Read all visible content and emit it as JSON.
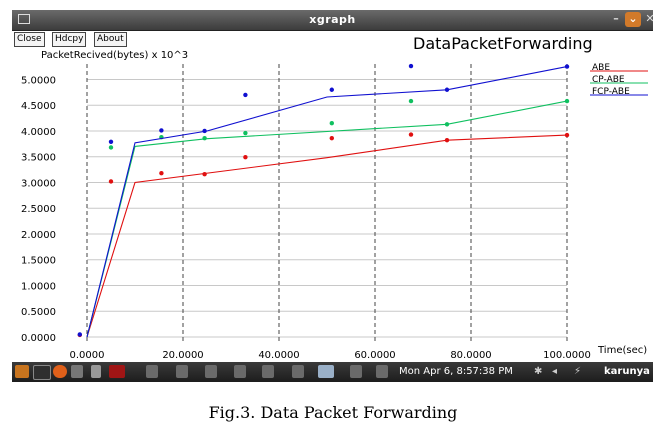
{
  "window": {
    "title": "xgraph"
  },
  "toolbar": {
    "close_label": "Close",
    "hdcpy_label": "Hdcpy",
    "about_label": "About"
  },
  "chart_data": {
    "type": "line",
    "title": "DataPacketForwarding",
    "ylabel": "PacketRecived(bytes) x 10^3",
    "xlabel": "Time(sec)",
    "xlim": [
      0,
      100
    ],
    "ylim": [
      0,
      5.3
    ],
    "x_ticks": [
      "0.0000",
      "20.0000",
      "40.0000",
      "60.0000",
      "80.0000",
      "100.0000"
    ],
    "y_ticks": [
      "0.0000",
      "0.5000",
      "1.0000",
      "1.5000",
      "2.0000",
      "2.5000",
      "3.0000",
      "3.5000",
      "4.0000",
      "4.5000",
      "5.0000"
    ],
    "grid": true,
    "legend_position": "top-right",
    "series": [
      {
        "name": "ABE",
        "color": "#e01010",
        "line_points": [
          [
            0,
            0.0
          ],
          [
            10,
            3.0
          ],
          [
            50,
            3.48
          ],
          [
            75,
            3.82
          ],
          [
            100,
            3.92
          ]
        ],
        "scatter_points": [
          [
            -1.5,
            0.04
          ],
          [
            5,
            3.02
          ],
          [
            15.5,
            3.18
          ],
          [
            24.5,
            3.16
          ],
          [
            33,
            3.49
          ],
          [
            51,
            3.86
          ],
          [
            67.5,
            3.93
          ],
          [
            75,
            3.82
          ],
          [
            100,
            3.92
          ]
        ]
      },
      {
        "name": "CP-ABE",
        "color": "#10c060",
        "line_points": [
          [
            0,
            0.0
          ],
          [
            10,
            3.7
          ],
          [
            25,
            3.85
          ],
          [
            75,
            4.13
          ],
          [
            100,
            4.58
          ]
        ],
        "scatter_points": [
          [
            5,
            3.68
          ],
          [
            15.5,
            3.88
          ],
          [
            24.5,
            3.86
          ],
          [
            33,
            3.96
          ],
          [
            51,
            4.15
          ],
          [
            67.5,
            4.58
          ],
          [
            75,
            4.13
          ],
          [
            100,
            4.58
          ]
        ]
      },
      {
        "name": "FCP-ABE",
        "color": "#1010d0",
        "line_points": [
          [
            0,
            0.0
          ],
          [
            10,
            3.77
          ],
          [
            25,
            4.0
          ],
          [
            50,
            4.66
          ],
          [
            75,
            4.8
          ],
          [
            100,
            5.25
          ]
        ],
        "scatter_points": [
          [
            -1.5,
            0.05
          ],
          [
            5,
            3.79
          ],
          [
            15.5,
            4.01
          ],
          [
            24.5,
            4.0
          ],
          [
            33,
            4.7
          ],
          [
            51,
            4.8
          ],
          [
            67.5,
            5.26
          ],
          [
            75,
            4.8
          ],
          [
            100,
            5.25
          ]
        ]
      }
    ]
  },
  "taskbar": {
    "clock": "Mon Apr  6,  8:57:38 PM",
    "user": "karunya"
  },
  "caption": "Fig.3. Data Packet Forwarding"
}
